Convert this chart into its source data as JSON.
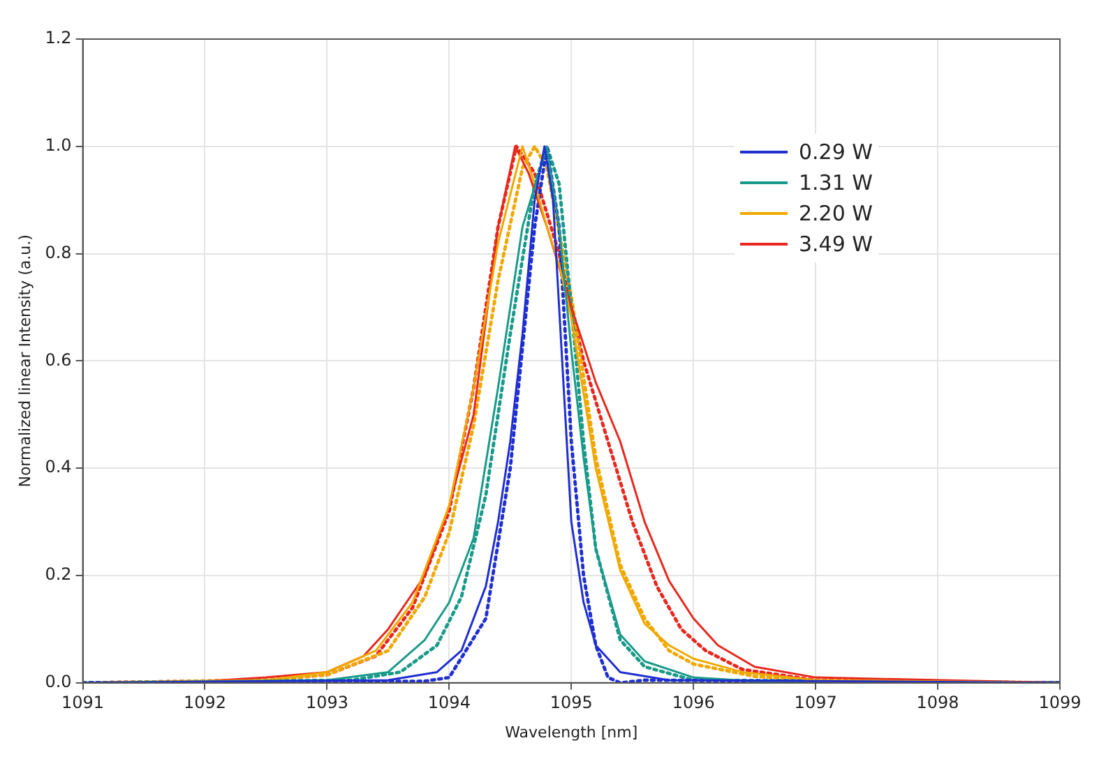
{
  "chart_data": {
    "type": "line",
    "xlabel": "Wavelength [nm]",
    "ylabel": "Normalized linear Intensity (a.u.)",
    "xlim": [
      1091,
      1099
    ],
    "xticks": [
      1091,
      1092,
      1093,
      1094,
      1095,
      1096,
      1097,
      1098,
      1099
    ],
    "ylim": [
      0,
      1.2
    ],
    "yticks": [
      {
        "value": 0,
        "label": "0.0"
      },
      {
        "value": 0.2,
        "label": "0.2"
      },
      {
        "value": 0.4,
        "label": "0.4"
      },
      {
        "value": 0.6,
        "label": "0.6"
      },
      {
        "value": 0.8,
        "label": "0.8"
      },
      {
        "value": 1,
        "label": "1.0"
      },
      {
        "value": 1.2,
        "label": "1.2"
      }
    ],
    "grid": true,
    "legend": "top right",
    "marker": "none",
    "series": [
      {
        "name": "0.29 W",
        "color": "#1f2fd0",
        "line_style": "solid",
        "x": [
          1091,
          1093.5,
          1093.9,
          1094.1,
          1094.3,
          1094.4,
          1094.5,
          1094.6,
          1094.7,
          1094.78,
          1094.85,
          1094.9,
          1094.95,
          1095.0,
          1095.1,
          1095.2,
          1095.4,
          1095.8,
          1099
        ],
        "values": [
          0,
          0.005,
          0.02,
          0.06,
          0.18,
          0.3,
          0.45,
          0.65,
          0.9,
          1.0,
          0.9,
          0.7,
          0.5,
          0.3,
          0.15,
          0.07,
          0.02,
          0.005,
          0
        ]
      },
      {
        "name": "1.31 W",
        "color": "#1a9a8a",
        "line_style": "solid",
        "x": [
          1091,
          1093.0,
          1093.5,
          1093.8,
          1094.0,
          1094.2,
          1094.4,
          1094.6,
          1094.8,
          1094.9,
          1095.0,
          1095.1,
          1095.2,
          1095.4,
          1095.6,
          1096.0,
          1096.5,
          1099
        ],
        "values": [
          0,
          0.005,
          0.02,
          0.08,
          0.15,
          0.27,
          0.55,
          0.85,
          1.0,
          0.85,
          0.62,
          0.42,
          0.25,
          0.09,
          0.04,
          0.01,
          0.003,
          0
        ]
      },
      {
        "name": "2.20 W",
        "color": "#f0a800",
        "line_style": "solid",
        "x": [
          1091,
          1092.5,
          1093.0,
          1093.4,
          1093.7,
          1094.0,
          1094.2,
          1094.4,
          1094.6,
          1094.7,
          1094.8,
          1094.9,
          1095.0,
          1095.2,
          1095.4,
          1095.6,
          1095.8,
          1096.0,
          1096.4,
          1097.0,
          1099
        ],
        "values": [
          0,
          0.005,
          0.02,
          0.06,
          0.15,
          0.33,
          0.55,
          0.82,
          1.0,
          0.93,
          0.85,
          0.78,
          0.68,
          0.4,
          0.21,
          0.11,
          0.07,
          0.045,
          0.02,
          0.005,
          0
        ]
      },
      {
        "name": "3.49 W",
        "color": "#e8281e",
        "line_style": "solid",
        "x": [
          1091,
          1092.0,
          1092.5,
          1093.0,
          1093.3,
          1093.5,
          1093.8,
          1094.0,
          1094.2,
          1094.4,
          1094.54,
          1094.65,
          1094.8,
          1095.0,
          1095.2,
          1095.4,
          1095.6,
          1095.8,
          1096.0,
          1096.2,
          1096.5,
          1097.0,
          1099
        ],
        "values": [
          0,
          0.003,
          0.01,
          0.02,
          0.05,
          0.1,
          0.2,
          0.33,
          0.5,
          0.85,
          1.0,
          0.95,
          0.85,
          0.7,
          0.56,
          0.45,
          0.3,
          0.19,
          0.12,
          0.07,
          0.03,
          0.01,
          0
        ]
      },
      {
        "color": "#1f2fd0",
        "line_style": "dotted",
        "x": [
          1091,
          1093.8,
          1094.0,
          1094.3,
          1094.5,
          1094.7,
          1094.8,
          1094.9,
          1095.0,
          1095.1,
          1095.2,
          1095.3,
          1095.4,
          1095.6,
          1099
        ],
        "values": [
          0,
          0.003,
          0.01,
          0.12,
          0.4,
          0.85,
          1.0,
          0.85,
          0.45,
          0.2,
          0.07,
          0.01,
          0,
          0.005,
          0
        ]
      },
      {
        "color": "#1a9a8a",
        "line_style": "dotted",
        "x": [
          1091,
          1093.2,
          1093.6,
          1093.9,
          1094.1,
          1094.3,
          1094.5,
          1094.7,
          1094.8,
          1094.9,
          1095.0,
          1095.1,
          1095.2,
          1095.4,
          1095.6,
          1096.0,
          1099
        ],
        "values": [
          0,
          0.005,
          0.02,
          0.07,
          0.16,
          0.35,
          0.65,
          0.93,
          1.0,
          0.93,
          0.7,
          0.45,
          0.25,
          0.08,
          0.03,
          0.005,
          0
        ]
      },
      {
        "color": "#f0a800",
        "line_style": "dotted",
        "x": [
          1091,
          1092.5,
          1093.0,
          1093.5,
          1093.8,
          1094.0,
          1094.2,
          1094.4,
          1094.6,
          1094.7,
          1094.8,
          1095.0,
          1095.2,
          1095.4,
          1095.6,
          1095.8,
          1096.0,
          1096.5,
          1097.0,
          1099
        ],
        "values": [
          0,
          0.005,
          0.015,
          0.06,
          0.16,
          0.28,
          0.48,
          0.75,
          0.96,
          1.0,
          0.96,
          0.72,
          0.42,
          0.22,
          0.12,
          0.06,
          0.035,
          0.012,
          0.004,
          0
        ]
      },
      {
        "color": "#e8281e",
        "line_style": "dotted",
        "x": [
          1091,
          1092.5,
          1093.0,
          1093.4,
          1093.7,
          1094.0,
          1094.2,
          1094.4,
          1094.55,
          1094.7,
          1094.9,
          1095.1,
          1095.3,
          1095.5,
          1095.7,
          1095.9,
          1096.1,
          1096.4,
          1097.0,
          1099
        ],
        "values": [
          0,
          0.005,
          0.015,
          0.05,
          0.14,
          0.32,
          0.55,
          0.85,
          1.0,
          0.95,
          0.8,
          0.6,
          0.45,
          0.3,
          0.18,
          0.1,
          0.06,
          0.025,
          0.005,
          0
        ]
      }
    ]
  }
}
